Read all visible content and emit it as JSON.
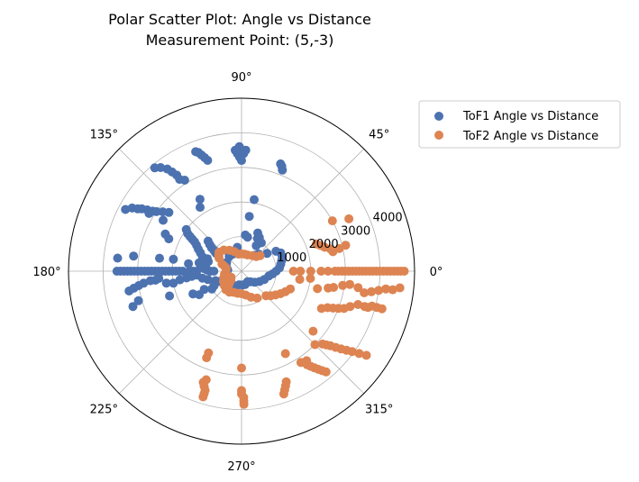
{
  "chart_data": {
    "type": "scatter",
    "polar": true,
    "title": "Polar Scatter Plot: Angle vs Distance",
    "subtitle": "Measurement Point: (5,-3)",
    "angle_ticks": [
      "0°",
      "45°",
      "90°",
      "135°",
      "180°",
      "225°",
      "270°",
      "315°"
    ],
    "radial_ticks": [
      1000,
      2000,
      3000,
      4000
    ],
    "radial_tick_labels": [
      "1000",
      "2000",
      "3000",
      "4000"
    ],
    "rlim": [
      0,
      5000
    ],
    "grid": true,
    "legend_position": "top-right",
    "series": [
      {
        "name": "ToF1 Angle vs Distance",
        "color": "#4c72b0",
        "points": [
          [
            180,
            3600
          ],
          [
            180,
            3500
          ],
          [
            180,
            3400
          ],
          [
            180,
            3300
          ],
          [
            180,
            3200
          ],
          [
            180,
            3100
          ],
          [
            180,
            3000
          ],
          [
            180,
            2900
          ],
          [
            180,
            2800
          ],
          [
            180,
            2700
          ],
          [
            180,
            2600
          ],
          [
            180,
            2500
          ],
          [
            180,
            2400
          ],
          [
            180,
            2300
          ],
          [
            180,
            2200
          ],
          [
            180,
            2100
          ],
          [
            180,
            2000
          ],
          [
            180,
            1900
          ],
          [
            180,
            1800
          ],
          [
            180,
            1700
          ],
          [
            180,
            1500
          ],
          [
            180,
            1400
          ],
          [
            180,
            1300
          ],
          [
            180,
            900
          ],
          [
            180,
            800
          ],
          [
            174,
            3600
          ],
          [
            172,
            3150
          ],
          [
            171,
            2400
          ],
          [
            170,
            2000
          ],
          [
            172,
            1550
          ],
          [
            176,
            1100
          ],
          [
            178,
            1000
          ],
          [
            190,
            3300
          ],
          [
            189,
            3150
          ],
          [
            188,
            3000
          ],
          [
            187,
            2850
          ],
          [
            186,
            2650
          ],
          [
            186,
            2500
          ],
          [
            185,
            2400
          ],
          [
            189,
            2200
          ],
          [
            190,
            2000
          ],
          [
            188,
            1800
          ],
          [
            187,
            1600
          ],
          [
            186,
            1450
          ],
          [
            185,
            1300
          ],
          [
            190,
            1150
          ],
          [
            194,
            1000
          ],
          [
            200,
            800
          ],
          [
            205,
            700
          ],
          [
            210,
            600
          ],
          [
            198,
            3300
          ],
          [
            196,
            3100
          ],
          [
            199,
            2200
          ],
          [
            211,
            1000
          ],
          [
            206,
            1200
          ],
          [
            209,
            1400
          ],
          [
            205,
            1550
          ],
          [
            208,
            900
          ],
          [
            152,
            3800
          ],
          [
            150,
            3650
          ],
          [
            149,
            3500
          ],
          [
            148,
            3400
          ],
          [
            147,
            3250
          ],
          [
            146,
            3100
          ],
          [
            145,
            3000
          ],
          [
            143,
            2850
          ],
          [
            141,
            2700
          ],
          [
            130,
            3900
          ],
          [
            128,
            3800
          ],
          [
            126,
            3650
          ],
          [
            125,
            3500
          ],
          [
            124,
            3350
          ],
          [
            124,
            3200
          ],
          [
            122,
            3100
          ],
          [
            111,
            3700
          ],
          [
            110,
            3650
          ],
          [
            109,
            3550
          ],
          [
            108,
            3450
          ],
          [
            107,
            3350
          ],
          [
            93,
            3500
          ],
          [
            92,
            3400
          ],
          [
            91,
            3300
          ],
          [
            90,
            3200
          ],
          [
            88,
            3500
          ],
          [
            89,
            3400
          ],
          [
            91,
            3600
          ],
          [
            70,
            3300
          ],
          [
            69,
            3250
          ],
          [
            68,
            3150
          ],
          [
            80,
            2100
          ],
          [
            82,
            1600
          ],
          [
            84,
            1050
          ],
          [
            80,
            1000
          ],
          [
            154,
            2450
          ],
          [
            156,
            2300
          ],
          [
            148,
            3150
          ],
          [
            147,
            2700
          ],
          [
            143,
            2000
          ],
          [
            145,
            1900
          ],
          [
            146,
            1800
          ],
          [
            147,
            1700
          ],
          [
            148,
            1600
          ],
          [
            150,
            1500
          ],
          [
            153,
            1400
          ],
          [
            156,
            1300
          ],
          [
            160,
            1200
          ],
          [
            138,
            1300
          ],
          [
            140,
            1200
          ],
          [
            142,
            1100
          ],
          [
            143,
            1000
          ],
          [
            145,
            900
          ],
          [
            169,
            1250
          ],
          [
            173,
            1150
          ],
          [
            170,
            1050
          ],
          [
            164,
            1000
          ],
          [
            160,
            1050
          ],
          [
            120,
            2400
          ],
          [
            123,
            2200
          ],
          [
            100,
            700
          ],
          [
            105,
            600
          ],
          [
            115,
            550
          ],
          [
            130,
            550
          ],
          [
            150,
            500
          ],
          [
            165,
            450
          ],
          [
            175,
            400
          ],
          [
            240,
            600
          ],
          [
            245,
            500
          ],
          [
            250,
            450
          ],
          [
            260,
            400
          ],
          [
            275,
            400
          ],
          [
            285,
            400
          ],
          [
            300,
            350
          ],
          [
            310,
            400
          ],
          [
            320,
            500
          ],
          [
            330,
            600
          ],
          [
            340,
            700
          ],
          [
            350,
            800
          ],
          [
            355,
            900
          ],
          [
            360,
            1000
          ],
          [
            5,
            1100
          ],
          [
            10,
            1150
          ],
          [
            15,
            1200
          ],
          [
            20,
            1250
          ],
          [
            25,
            1250
          ],
          [
            30,
            1150
          ],
          [
            35,
            900
          ],
          [
            45,
            700
          ],
          [
            50,
            600
          ],
          [
            60,
            850
          ],
          [
            64,
            1050
          ],
          [
            67,
            1200
          ],
          [
            62,
            1100
          ],
          [
            55,
            1000
          ]
        ]
      },
      {
        "name": "ToF2 Angle vs Distance",
        "color": "#dd8452",
        "points": [
          [
            0,
            4700
          ],
          [
            0,
            4600
          ],
          [
            0,
            4500
          ],
          [
            0,
            4400
          ],
          [
            0,
            4300
          ],
          [
            0,
            4200
          ],
          [
            0,
            4100
          ],
          [
            0,
            4000
          ],
          [
            0,
            3900
          ],
          [
            0,
            3800
          ],
          [
            0,
            3700
          ],
          [
            0,
            3600
          ],
          [
            0,
            3500
          ],
          [
            0,
            3400
          ],
          [
            0,
            3300
          ],
          [
            0,
            3200
          ],
          [
            0,
            3100
          ],
          [
            0,
            3000
          ],
          [
            0,
            2900
          ],
          [
            0,
            2800
          ],
          [
            0,
            2700
          ],
          [
            0,
            2500
          ],
          [
            0,
            2300
          ],
          [
            0,
            2000
          ],
          [
            0,
            1700
          ],
          [
            0,
            1500
          ],
          [
            -6,
            4600
          ],
          [
            -7,
            4400
          ],
          [
            -7,
            4200
          ],
          [
            -8,
            4000
          ],
          [
            -9,
            3800
          ],
          [
            -10,
            3600
          ],
          [
            -8,
            3400
          ],
          [
            -7,
            3150
          ],
          [
            -8,
            2950
          ],
          [
            -10,
            2700
          ],
          [
            -11,
            2550
          ],
          [
            -13,
            2250
          ],
          [
            -6,
            2000
          ],
          [
            -8,
            1700
          ],
          [
            -15,
            4200
          ],
          [
            -15,
            4050
          ],
          [
            -15,
            3900
          ],
          [
            -16,
            3800
          ],
          [
            -16,
            3700
          ],
          [
            -16,
            3500
          ],
          [
            -18,
            3300
          ],
          [
            -20,
            3150
          ],
          [
            -21,
            3000
          ],
          [
            -22,
            2850
          ],
          [
            -23,
            2700
          ],
          [
            -25,
            2550
          ],
          [
            -34,
            4350
          ],
          [
            -35,
            4150
          ],
          [
            -36,
            3950
          ],
          [
            -37,
            3800
          ],
          [
            -38,
            3650
          ],
          [
            -39,
            3500
          ],
          [
            -40,
            3350
          ],
          [
            -41,
            3250
          ],
          [
            -42,
            3150
          ],
          [
            -45,
            3000
          ],
          [
            -40,
            2700
          ],
          [
            -50,
            3800
          ],
          [
            -51,
            3700
          ],
          [
            -52,
            3600
          ],
          [
            -53,
            3500
          ],
          [
            -54,
            3400
          ],
          [
            -55,
            3300
          ],
          [
            -54,
            3200
          ],
          [
            -57,
            3150
          ],
          [
            -71,
            3750
          ],
          [
            -70,
            3650
          ],
          [
            -69,
            3550
          ],
          [
            -68,
            3450
          ],
          [
            -62,
            2700
          ],
          [
            -89,
            3850
          ],
          [
            -89,
            3750
          ],
          [
            -89,
            3650
          ],
          [
            -90,
            3550
          ],
          [
            -90,
            3450
          ],
          [
            -90,
            2800
          ],
          [
            -107,
            3800
          ],
          [
            -107,
            3700
          ],
          [
            -107,
            3600
          ],
          [
            -108,
            3500
          ],
          [
            -109,
            3400
          ],
          [
            -108,
            3300
          ],
          [
            -112,
            2700
          ],
          [
            -112,
            2550
          ],
          [
            14,
            3100
          ],
          [
            13,
            2900
          ],
          [
            12,
            2700
          ],
          [
            14,
            2650
          ],
          [
            16,
            2500
          ],
          [
            18,
            2400
          ],
          [
            20,
            2300
          ],
          [
            26,
            3450
          ],
          [
            29,
            3000
          ],
          [
            -20,
            1500
          ],
          [
            -25,
            1400
          ],
          [
            -30,
            1300
          ],
          [
            -35,
            1200
          ],
          [
            -40,
            1100
          ],
          [
            -45,
            1000
          ],
          [
            -60,
            900
          ],
          [
            -70,
            800
          ],
          [
            -80,
            700
          ],
          [
            -90,
            650
          ],
          [
            -100,
            650
          ],
          [
            -110,
            650
          ],
          [
            -120,
            700
          ],
          [
            -130,
            700
          ],
          [
            -140,
            650
          ],
          [
            -150,
            600
          ],
          [
            -160,
            550
          ],
          [
            -170,
            500
          ],
          [
            -175,
            450
          ],
          [
            170,
            450
          ],
          [
            165,
            500
          ],
          [
            160,
            600
          ],
          [
            150,
            750
          ],
          [
            145,
            800
          ],
          [
            140,
            850
          ],
          [
            130,
            800
          ],
          [
            120,
            700
          ],
          [
            110,
            600
          ],
          [
            100,
            500
          ],
          [
            90,
            500
          ],
          [
            80,
            500
          ],
          [
            70,
            500
          ],
          [
            55,
            550
          ],
          [
            45,
            600
          ],
          [
            40,
            700
          ],
          [
            -130,
            600
          ],
          [
            -135,
            500
          ],
          [
            -140,
            400
          ],
          [
            -150,
            350
          ]
        ]
      }
    ]
  }
}
